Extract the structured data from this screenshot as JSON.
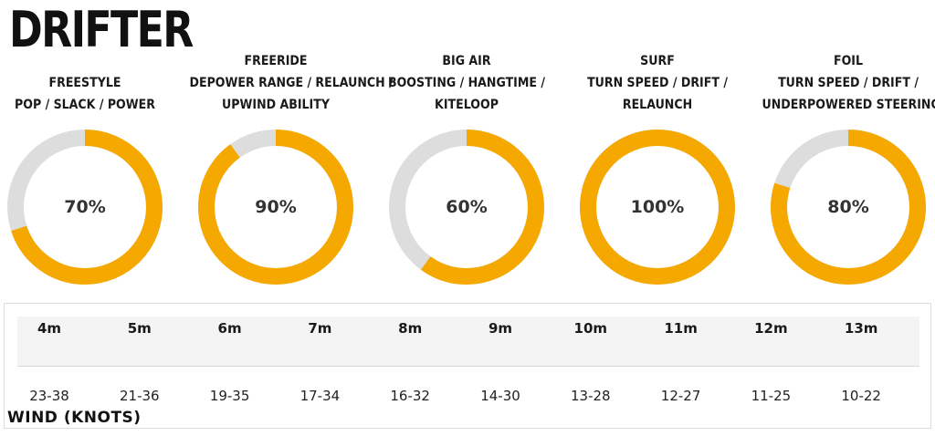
{
  "title": "DRIFTER",
  "colors": {
    "accent": "#f5a800",
    "track": "#dddddd"
  },
  "gauges": [
    {
      "lines": [
        "FREESTYLE",
        "POP / SLACK / POWER"
      ],
      "label": "70%",
      "value": 70
    },
    {
      "lines": [
        "FREERIDE",
        "DEPOWER RANGE / RELAUNCH /",
        "UPWIND ABILITY"
      ],
      "label": "90%",
      "value": 90
    },
    {
      "lines": [
        "BIG AIR",
        "BOOSTING / HANGTIME /",
        "KITELOOP"
      ],
      "label": "60%",
      "value": 60
    },
    {
      "lines": [
        "SURF",
        "TURN SPEED / DRIFT /",
        "RELAUNCH"
      ],
      "label": "100%",
      "value": 100
    },
    {
      "lines": [
        "FOIL",
        "TURN SPEED / DRIFT /",
        "UNDERPOWERED STEERING"
      ],
      "label": "80%",
      "value": 80
    }
  ],
  "sizes": [
    "4m",
    "5m",
    "6m",
    "7m",
    "8m",
    "9m",
    "10m",
    "11m",
    "12m",
    "13m"
  ],
  "wind_ranges": [
    "23-38",
    "21-36",
    "19-35",
    "17-34",
    "16-32",
    "14-30",
    "13-28",
    "12-27",
    "11-25",
    "10-22"
  ],
  "wind_label": "WIND (KNOTS)"
}
